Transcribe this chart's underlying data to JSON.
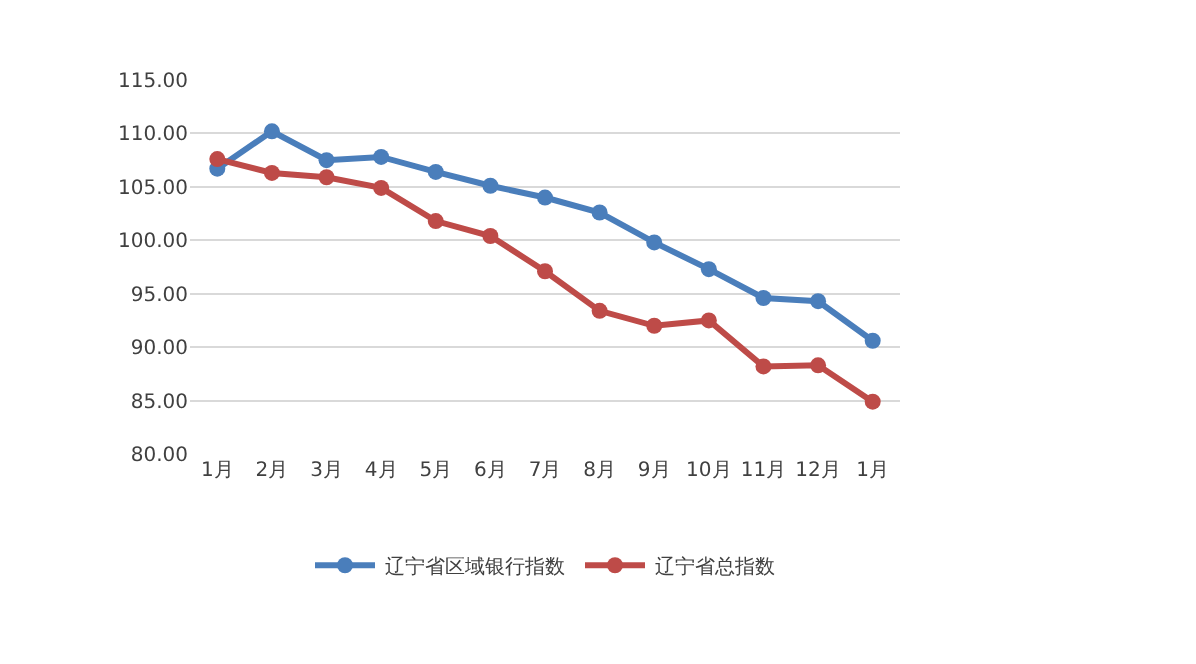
{
  "chart_data": {
    "type": "line",
    "categories": [
      "1月",
      "2月",
      "3月",
      "4月",
      "5月",
      "6月",
      "7月",
      "8月",
      "9月",
      "10月",
      "11月",
      "12月",
      "1月"
    ],
    "series": [
      {
        "name": "辽宁省区域银行指数",
        "color": "#4a7ebb",
        "values": [
          106.7,
          110.2,
          107.5,
          107.8,
          106.4,
          105.1,
          104.0,
          102.6,
          99.8,
          97.3,
          94.6,
          94.3,
          90.6
        ]
      },
      {
        "name": "辽宁省总指数",
        "color": "#be4b48",
        "values": [
          107.6,
          106.3,
          105.9,
          104.9,
          101.8,
          100.4,
          97.1,
          93.4,
          92.0,
          92.5,
          88.2,
          88.3,
          84.9
        ]
      }
    ],
    "ylim": [
      80,
      115
    ],
    "yticks": [
      {
        "value": 80,
        "label": "80.00"
      },
      {
        "value": 85,
        "label": "85.00"
      },
      {
        "value": 90,
        "label": "90.00"
      },
      {
        "value": 95,
        "label": "95.00"
      },
      {
        "value": 100,
        "label": "100.00"
      },
      {
        "value": 105,
        "label": "105.00"
      },
      {
        "value": 110,
        "label": "110.00"
      },
      {
        "value": 115,
        "label": "115.00"
      }
    ],
    "grid": "y",
    "legend": "bottom",
    "marker": "circle",
    "line_style": "solid"
  }
}
